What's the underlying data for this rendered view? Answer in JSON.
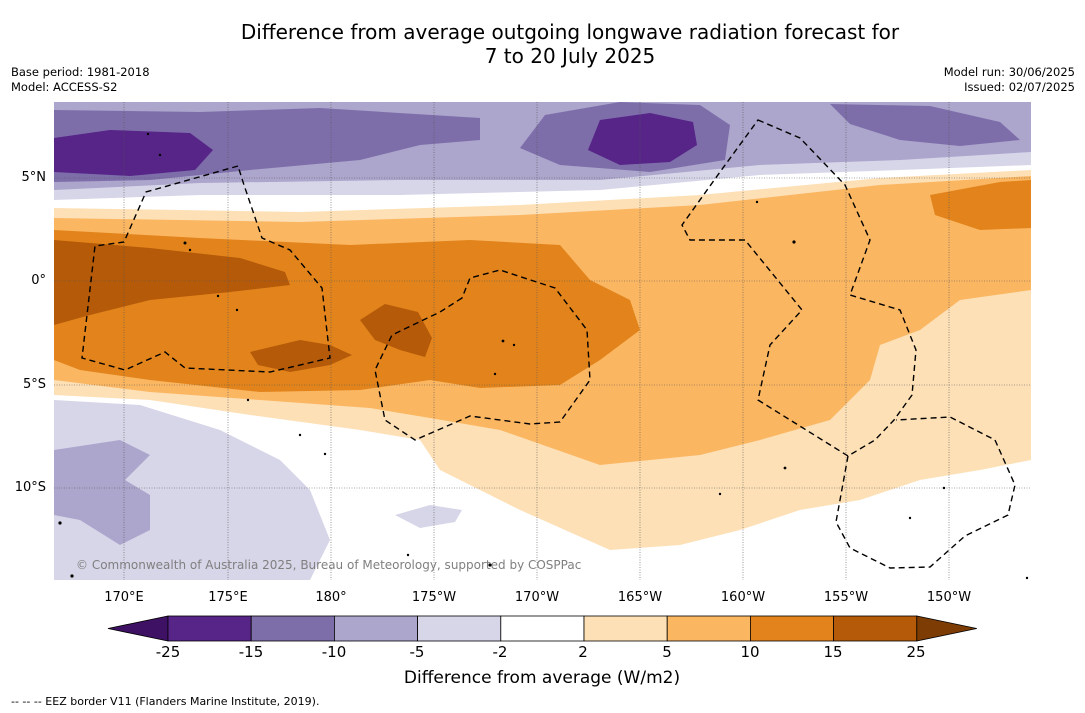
{
  "title": {
    "line1": "Difference from average outgoing longwave radiation forecast for",
    "line2": "7 to 20 July 2025"
  },
  "meta": {
    "base_period": "Base period: 1981-2018",
    "model": "Model: ACCESS-S2",
    "model_run": "Model run: 30/06/2025",
    "issued": "Issued: 02/07/2025"
  },
  "map": {
    "lat_labels": [
      "5°N",
      "0°",
      "5°S",
      "10°S"
    ],
    "lon_labels": [
      "170°E",
      "175°E",
      "180°",
      "175°W",
      "170°W",
      "165°W",
      "160°W",
      "155°W",
      "150°W"
    ],
    "copyright": "© Commonwealth of Australia 2025, Bureau of Meteorology, supported by COSPPac"
  },
  "colorbar": {
    "ticks": [
      "-25",
      "-15",
      "-10",
      "-5",
      "-2",
      "2",
      "5",
      "10",
      "15",
      "25"
    ],
    "colors": [
      "#3f1164",
      "#572488",
      "#7d6eaa",
      "#aca5cc",
      "#d7d6e9",
      "#ffffff",
      "#fde0b6",
      "#fbb662",
      "#e2841b",
      "#b55a09",
      "#7c3c04"
    ],
    "label": "Difference from average (W/m2)"
  },
  "legend_note": "-- -- -- EEZ border V11 (Flanders Marine Institute, 2019)."
}
